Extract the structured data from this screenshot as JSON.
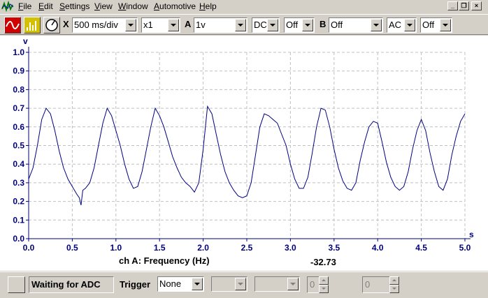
{
  "app": {
    "icon": "waveform-app-icon"
  },
  "menubar": {
    "items": [
      {
        "label": "File"
      },
      {
        "label": "Edit"
      },
      {
        "label": "Settings"
      },
      {
        "label": "View"
      },
      {
        "label": "Window"
      },
      {
        "label": "Automotive"
      },
      {
        "label": "Help"
      }
    ],
    "window_controls": [
      "minimize-icon",
      "restore-icon",
      "close-icon"
    ]
  },
  "toolbar": {
    "scope_icon": "scope-mode-icon",
    "spectrum_icon": "spectrum-mode-icon",
    "meter_icon": "meter-mode-icon",
    "x_label": "X",
    "timebase": "500 ms/div",
    "x_multiplier": "x1",
    "channel_a_label": "A",
    "channel_a_range": "1v",
    "channel_a_coupling": "DC",
    "channel_a_extra": "Off",
    "channel_b_label": "B",
    "channel_b_range": "Off",
    "channel_b_coupling": "AC",
    "channel_b_extra": "Off"
  },
  "plot": {
    "footer_measurement": "ch A: Frequency (Hz)",
    "footer_value": "-32.73",
    "colors": {
      "trace": "#000080",
      "axis": "#000080",
      "grid": "#c0c0c0"
    }
  },
  "chart_data": {
    "type": "line",
    "title": "",
    "xlabel": "s",
    "ylabel": "V",
    "xlim": [
      0,
      5.0
    ],
    "ylim": [
      0,
      1.0
    ],
    "x_ticks": [
      "0.0",
      "0.5",
      "1.0",
      "1.5",
      "2.0",
      "2.5",
      "3.0",
      "3.5",
      "4.0",
      "4.5",
      "5.0"
    ],
    "y_ticks": [
      "0.0",
      "0.1",
      "0.2",
      "0.3",
      "0.4",
      "0.5",
      "0.6",
      "0.7",
      "0.8",
      "0.9",
      "1.0"
    ],
    "grid": true,
    "series": [
      {
        "name": "",
        "x": [
          0.0,
          0.05,
          0.1,
          0.15,
          0.2,
          0.25,
          0.3,
          0.35,
          0.4,
          0.45,
          0.5,
          0.55,
          0.58,
          0.6,
          0.62,
          0.65,
          0.7,
          0.75,
          0.8,
          0.85,
          0.9,
          0.95,
          1.0,
          1.05,
          1.1,
          1.15,
          1.2,
          1.25,
          1.3,
          1.35,
          1.4,
          1.45,
          1.5,
          1.55,
          1.6,
          1.65,
          1.7,
          1.75,
          1.8,
          1.85,
          1.9,
          1.95,
          2.0,
          2.05,
          2.1,
          2.15,
          2.2,
          2.25,
          2.3,
          2.35,
          2.4,
          2.45,
          2.5,
          2.55,
          2.6,
          2.65,
          2.7,
          2.75,
          2.8,
          2.85,
          2.9,
          2.95,
          3.0,
          3.05,
          3.1,
          3.15,
          3.2,
          3.25,
          3.3,
          3.35,
          3.4,
          3.45,
          3.5,
          3.55,
          3.6,
          3.65,
          3.7,
          3.75,
          3.8,
          3.85,
          3.9,
          3.95,
          4.0,
          4.05,
          4.1,
          4.15,
          4.2,
          4.25,
          4.3,
          4.35,
          4.4,
          4.45,
          4.5,
          4.55,
          4.6,
          4.65,
          4.7,
          4.75,
          4.8,
          4.85,
          4.9,
          4.95,
          5.0
        ],
        "y": [
          0.32,
          0.38,
          0.5,
          0.64,
          0.7,
          0.67,
          0.58,
          0.47,
          0.38,
          0.32,
          0.28,
          0.24,
          0.22,
          0.18,
          0.26,
          0.27,
          0.3,
          0.38,
          0.5,
          0.62,
          0.7,
          0.66,
          0.58,
          0.5,
          0.4,
          0.32,
          0.27,
          0.28,
          0.36,
          0.48,
          0.6,
          0.7,
          0.66,
          0.6,
          0.52,
          0.44,
          0.38,
          0.33,
          0.3,
          0.28,
          0.25,
          0.3,
          0.48,
          0.71,
          0.67,
          0.56,
          0.45,
          0.36,
          0.3,
          0.26,
          0.23,
          0.22,
          0.23,
          0.3,
          0.45,
          0.6,
          0.67,
          0.66,
          0.64,
          0.62,
          0.56,
          0.5,
          0.4,
          0.32,
          0.27,
          0.27,
          0.33,
          0.46,
          0.6,
          0.7,
          0.69,
          0.6,
          0.48,
          0.38,
          0.31,
          0.27,
          0.26,
          0.3,
          0.42,
          0.52,
          0.6,
          0.63,
          0.62,
          0.52,
          0.41,
          0.33,
          0.28,
          0.26,
          0.28,
          0.36,
          0.48,
          0.58,
          0.64,
          0.58,
          0.46,
          0.36,
          0.28,
          0.26,
          0.32,
          0.45,
          0.55,
          0.63,
          0.67
        ]
      }
    ]
  },
  "statusbar": {
    "run_button_icon": "run-stop-icon",
    "status_text": "Waiting for ADC",
    "trigger_label": "Trigger",
    "trigger_mode": "None",
    "trigger_channel": "",
    "trigger_direction": "",
    "trigger_level": "0",
    "trigger_delay": "0"
  }
}
